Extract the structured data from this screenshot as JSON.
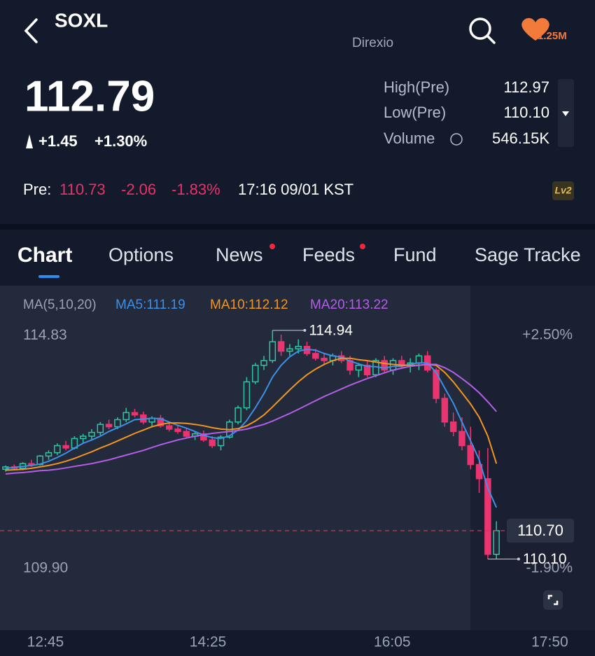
{
  "header": {
    "symbol": "SOXL",
    "issuer": "Direxio",
    "followers": "1.25M"
  },
  "quote": {
    "price": "112.79",
    "change": "+1.45",
    "change_pct": "+1.30%",
    "stats": [
      {
        "label": "High(Pre)",
        "value": "112.97"
      },
      {
        "label": "Low(Pre)",
        "value": "110.10"
      },
      {
        "label": "Volume",
        "value": "546.15K"
      }
    ],
    "pre": {
      "label": "Pre:",
      "price": "110.73",
      "change": "-2.06",
      "change_pct": "-1.83%",
      "time": "17:16 09/01 KST"
    },
    "badge": "Lv2"
  },
  "tabs": [
    "Chart",
    "Options",
    "News",
    "Feeds",
    "Fund",
    "Sage Tracke"
  ],
  "chart_data": {
    "type": "candlestick",
    "legend_title": "MA(5,10,20)",
    "up_color": "#2fc5a2",
    "down_color": "#ea3470",
    "ohlc": [
      [
        112.0,
        112.08,
        111.95,
        112.05
      ],
      [
        112.05,
        112.1,
        111.98,
        112.02
      ],
      [
        112.02,
        112.15,
        111.98,
        112.12
      ],
      [
        112.12,
        112.2,
        112.05,
        112.1
      ],
      [
        112.1,
        112.3,
        112.08,
        112.28
      ],
      [
        112.28,
        112.4,
        112.2,
        112.35
      ],
      [
        112.35,
        112.55,
        112.3,
        112.5
      ],
      [
        112.5,
        112.6,
        112.4,
        112.45
      ],
      [
        112.45,
        112.7,
        112.42,
        112.65
      ],
      [
        112.65,
        112.75,
        112.55,
        112.7
      ],
      [
        112.7,
        112.85,
        112.62,
        112.78
      ],
      [
        112.78,
        113.0,
        112.72,
        112.95
      ],
      [
        112.95,
        113.05,
        112.85,
        112.9
      ],
      [
        112.9,
        113.1,
        112.85,
        113.05
      ],
      [
        113.05,
        113.3,
        113.0,
        113.2
      ],
      [
        113.2,
        113.28,
        113.1,
        113.15
      ],
      [
        113.15,
        113.22,
        112.95,
        113.0
      ],
      [
        113.0,
        113.12,
        112.9,
        113.08
      ],
      [
        113.08,
        113.15,
        112.88,
        112.92
      ],
      [
        112.92,
        113.0,
        112.8,
        112.85
      ],
      [
        112.85,
        112.92,
        112.75,
        112.8
      ],
      [
        112.8,
        112.88,
        112.65,
        112.7
      ],
      [
        112.7,
        112.8,
        112.62,
        112.75
      ],
      [
        112.75,
        112.82,
        112.58,
        112.62
      ],
      [
        112.62,
        112.7,
        112.45,
        112.5
      ],
      [
        112.5,
        112.72,
        112.4,
        112.68
      ],
      [
        112.68,
        113.05,
        112.65,
        113.0
      ],
      [
        113.0,
        113.35,
        112.95,
        113.3
      ],
      [
        113.3,
        113.95,
        113.25,
        113.85
      ],
      [
        113.85,
        114.25,
        113.8,
        114.2
      ],
      [
        114.2,
        114.4,
        114.1,
        114.3
      ],
      [
        114.3,
        114.94,
        114.25,
        114.7
      ],
      [
        114.7,
        114.85,
        114.4,
        114.5
      ],
      [
        114.5,
        114.65,
        114.4,
        114.55
      ],
      [
        114.55,
        114.75,
        114.45,
        114.6
      ],
      [
        114.6,
        114.7,
        114.4,
        114.45
      ],
      [
        114.45,
        114.55,
        114.3,
        114.35
      ],
      [
        114.35,
        114.45,
        114.2,
        114.3
      ],
      [
        114.3,
        114.45,
        114.2,
        114.4
      ],
      [
        114.4,
        114.5,
        114.25,
        114.3
      ],
      [
        114.3,
        114.4,
        114.0,
        114.1
      ],
      [
        114.1,
        114.25,
        113.95,
        114.2
      ],
      [
        114.2,
        114.3,
        113.95,
        114.0
      ],
      [
        114.0,
        114.35,
        113.95,
        114.3
      ],
      [
        114.3,
        114.4,
        114.05,
        114.1
      ],
      [
        114.1,
        114.35,
        114.0,
        114.3
      ],
      [
        114.3,
        114.4,
        114.15,
        114.2
      ],
      [
        114.2,
        114.35,
        114.05,
        114.25
      ],
      [
        114.25,
        114.45,
        114.1,
        114.4
      ],
      [
        114.4,
        114.5,
        114.05,
        114.1
      ],
      [
        114.1,
        114.15,
        113.4,
        113.5
      ],
      [
        113.5,
        113.6,
        112.9,
        113.0
      ],
      [
        113.0,
        113.2,
        112.7,
        112.8
      ],
      [
        112.8,
        113.1,
        112.4,
        112.5
      ],
      [
        112.5,
        112.9,
        112.0,
        112.1
      ],
      [
        112.1,
        112.4,
        111.5,
        111.8
      ],
      [
        111.8,
        112.45,
        110.1,
        110.2
      ],
      [
        110.2,
        110.9,
        110.1,
        110.7
      ]
    ],
    "series": [
      {
        "name": "MA5:111.19",
        "color": "#3d8fe8",
        "values": [
          112.02,
          112.04,
          112.06,
          112.08,
          112.11,
          112.17,
          112.25,
          112.34,
          112.45,
          112.55,
          112.62,
          112.7,
          112.8,
          112.88,
          112.96,
          113.05,
          113.06,
          113.08,
          113.07,
          113.0,
          112.93,
          112.87,
          112.8,
          112.72,
          112.67,
          112.65,
          112.71,
          112.83,
          113.03,
          113.3,
          113.6,
          113.95,
          114.2,
          114.38,
          114.5,
          114.54,
          114.52,
          114.45,
          114.4,
          114.37,
          114.29,
          114.23,
          114.18,
          114.17,
          114.14,
          114.18,
          114.18,
          114.23,
          114.25,
          114.25,
          114.05,
          113.72,
          113.4,
          113.0,
          112.6,
          112.2,
          111.6,
          111.19
        ]
      },
      {
        "name": "MA10:112.12",
        "color": "#f0961e",
        "values": [
          111.98,
          111.99,
          112.0,
          112.02,
          112.05,
          112.08,
          112.12,
          112.17,
          112.23,
          112.3,
          112.37,
          112.45,
          112.52,
          112.6,
          112.68,
          112.76,
          112.83,
          112.9,
          112.95,
          112.98,
          112.98,
          112.97,
          112.95,
          112.92,
          112.88,
          112.85,
          112.84,
          112.86,
          112.92,
          113.02,
          113.15,
          113.32,
          113.5,
          113.68,
          113.85,
          114.0,
          114.12,
          114.22,
          114.3,
          114.35,
          114.35,
          114.32,
          114.3,
          114.27,
          114.24,
          114.22,
          114.2,
          114.2,
          114.2,
          114.22,
          114.2,
          114.05,
          113.85,
          113.62,
          113.38,
          113.1,
          112.7,
          112.12
        ]
      },
      {
        "name": "MA20:113.22",
        "color": "#b45ee8",
        "values": [
          111.9,
          111.92,
          111.93,
          111.95,
          111.97,
          111.98,
          112.0,
          112.03,
          112.06,
          112.09,
          112.12,
          112.16,
          112.2,
          112.25,
          112.3,
          112.35,
          112.4,
          112.46,
          112.52,
          112.57,
          112.62,
          112.66,
          112.7,
          112.73,
          112.76,
          112.78,
          112.8,
          112.82,
          112.85,
          112.9,
          112.95,
          113.02,
          113.1,
          113.18,
          113.27,
          113.36,
          113.45,
          113.54,
          113.62,
          113.7,
          113.78,
          113.85,
          113.92,
          113.98,
          114.04,
          114.1,
          114.14,
          114.18,
          114.2,
          114.22,
          114.22,
          114.15,
          114.05,
          113.92,
          113.78,
          113.62,
          113.43,
          113.22
        ]
      }
    ],
    "xlim": [
      -0.65,
      68.45
    ],
    "xticks": [
      {
        "value": 4.63,
        "label": "12:45"
      },
      {
        "value": 23.5,
        "label": "14:25"
      },
      {
        "value": 44.9,
        "label": "16:05"
      },
      {
        "value": 63.2,
        "label": "17:50"
      }
    ],
    "ylim": [
      108.67,
      115.19
    ],
    "yticks": [
      114.83,
      {
        "value": 109.9,
        "label": "109.90"
      }
    ],
    "y2lim": [
      -3.0,
      2.82
    ],
    "y2ticks": [
      {
        "value": 2.5,
        "label": "+2.50%"
      },
      {
        "value": -1.9,
        "label": "-1.90%"
      }
    ],
    "high": 114.94,
    "low": {
      "value": 110.1,
      "label": "110.10"
    },
    "last": {
      "value": 110.7,
      "label": "110.70"
    }
  }
}
